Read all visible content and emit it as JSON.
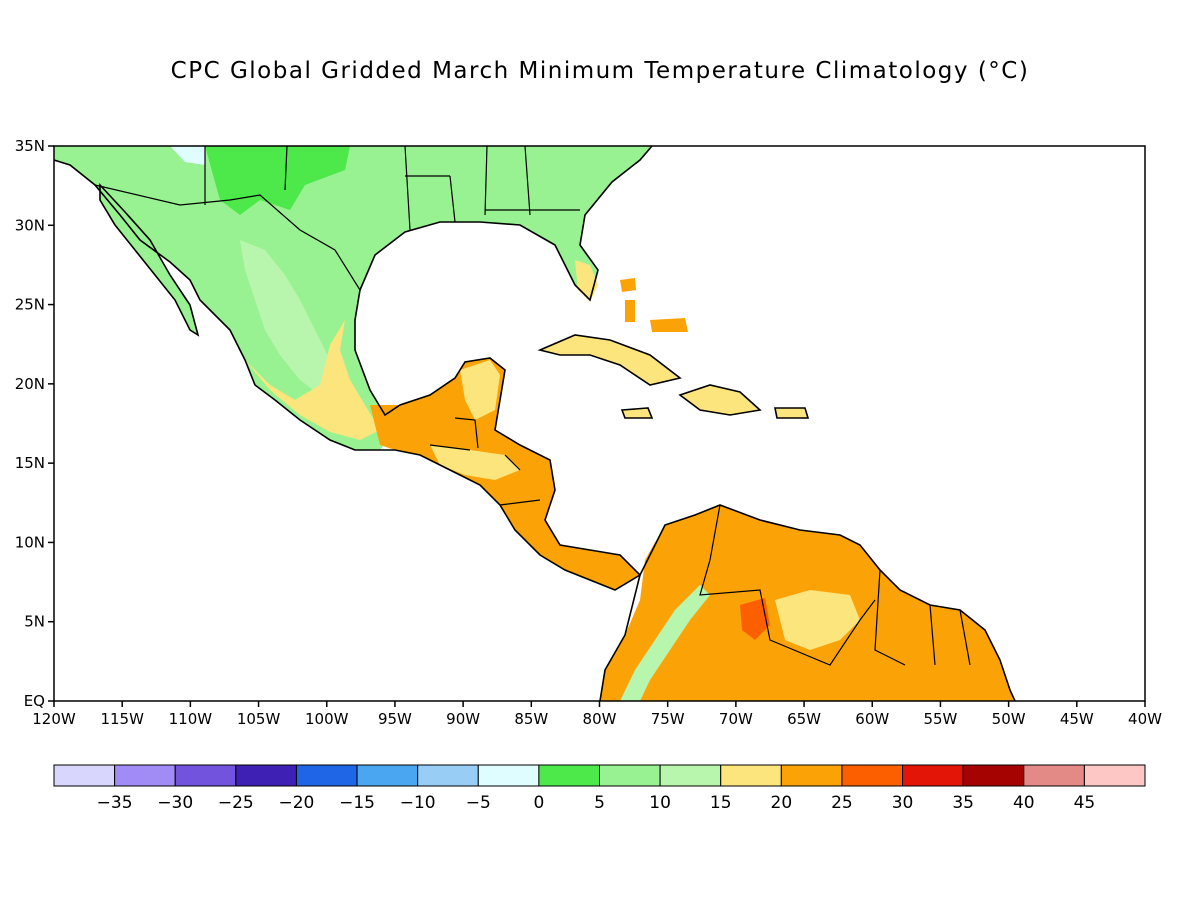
{
  "title": "CPC Global Gridded March Minimum Temperature Climatology (°C)",
  "map": {
    "lon_range": [
      -120,
      -40
    ],
    "lat_range": [
      0,
      35
    ],
    "x_ticks": [
      "120W",
      "115W",
      "110W",
      "105W",
      "100W",
      "95W",
      "90W",
      "85W",
      "80W",
      "75W",
      "70W",
      "65W",
      "60W",
      "55W",
      "50W",
      "45W",
      "40W"
    ],
    "y_ticks": [
      "EQ",
      "5N",
      "10N",
      "15N",
      "20N",
      "25N",
      "30N",
      "35N"
    ],
    "ocean_color": "#ffffff",
    "coast_color": "#000000"
  },
  "colorbar": {
    "colors": [
      "#d9d6fd",
      "#a18bf5",
      "#7253de",
      "#3e20b4",
      "#1f66e6",
      "#4aa6f1",
      "#98cdf6",
      "#dffdff",
      "#4de84a",
      "#98f291",
      "#b9f6ad",
      "#fde57e",
      "#fba306",
      "#fc5f00",
      "#e21506",
      "#a50301",
      "#e38986",
      "#fdc7c6"
    ],
    "labels": [
      "-35",
      "-30",
      "-25",
      "-20",
      "-15",
      "-10",
      "-5",
      "0",
      "5",
      "10",
      "15",
      "20",
      "25",
      "30",
      "35",
      "40",
      "45"
    ]
  }
}
